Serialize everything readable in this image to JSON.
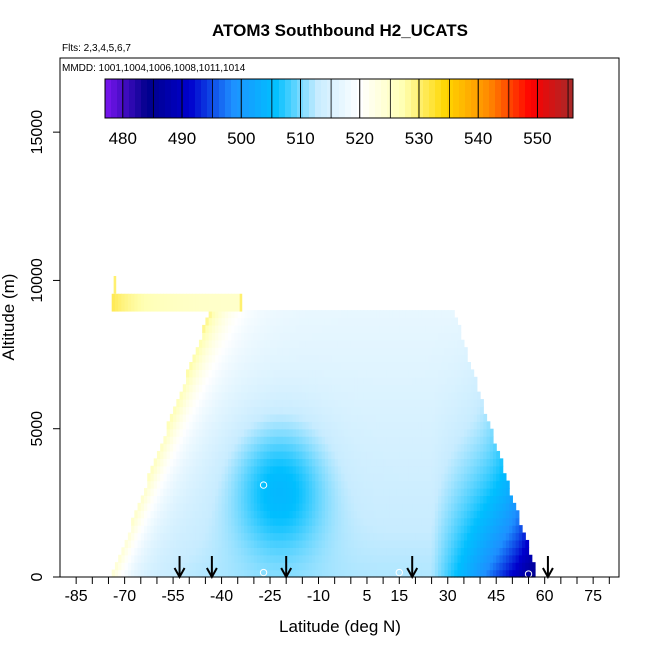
{
  "chart_data": {
    "type": "heatmap",
    "title": "ATOM3 Southbound H2_UCATS",
    "subtitle_flights": "Flts: 2,3,4,5,6,7",
    "subtitle_dates": "MMDD: 1001,1004,1006,1008,1011,1014",
    "xlabel": "Latitude (deg N)",
    "ylabel": "Altitude (m)",
    "xlim": [
      -90,
      83
    ],
    "ylim": [
      0,
      17500
    ],
    "x_ticks": [
      -85,
      -70,
      -55,
      -40,
      -25,
      -10,
      5,
      15,
      30,
      45,
      60,
      75
    ],
    "x_minor_ticks": [
      -80,
      -75,
      -65,
      -60,
      -50,
      -45,
      -35,
      -30,
      -20,
      -15,
      -5,
      0,
      10,
      20,
      25,
      35,
      40,
      50,
      55,
      65,
      70,
      80
    ],
    "y_ticks": [
      0,
      5000,
      10000,
      15000
    ],
    "colorbar": {
      "ticks": [
        480,
        490,
        500,
        510,
        520,
        530,
        540,
        550
      ],
      "range": [
        477,
        556
      ],
      "colors": [
        "#7b16f0",
        "#00008b",
        "#0000cd",
        "#1e90ff",
        "#00bfff",
        "#c8ecff",
        "#ffffff",
        "#ffffb4",
        "#ffd700",
        "#ff8c00",
        "#ff0000",
        "#a52a2a"
      ]
    },
    "profile_arrows_lat": [
      -53,
      -43,
      -20,
      19,
      61
    ],
    "sample_circles": [
      {
        "lat": -27,
        "alt": 3100
      },
      {
        "lat": -27,
        "alt": 150
      },
      {
        "lat": 15,
        "alt": 150
      },
      {
        "lat": 55,
        "alt": 100
      }
    ],
    "field": {
      "description": "H2 mixing ratio curtain (ppb) vs latitude and altitude",
      "top_alt": 8900,
      "high_band": {
        "alt_min": 8950,
        "alt_max": 9550,
        "lat_min": -74,
        "lat_max": -34,
        "value": 525
      },
      "isolated_cells": [
        {
          "lat": -73,
          "alt": 9850,
          "value": 530
        },
        {
          "lat": -34,
          "alt": 9250,
          "value": 530
        }
      ]
    }
  }
}
